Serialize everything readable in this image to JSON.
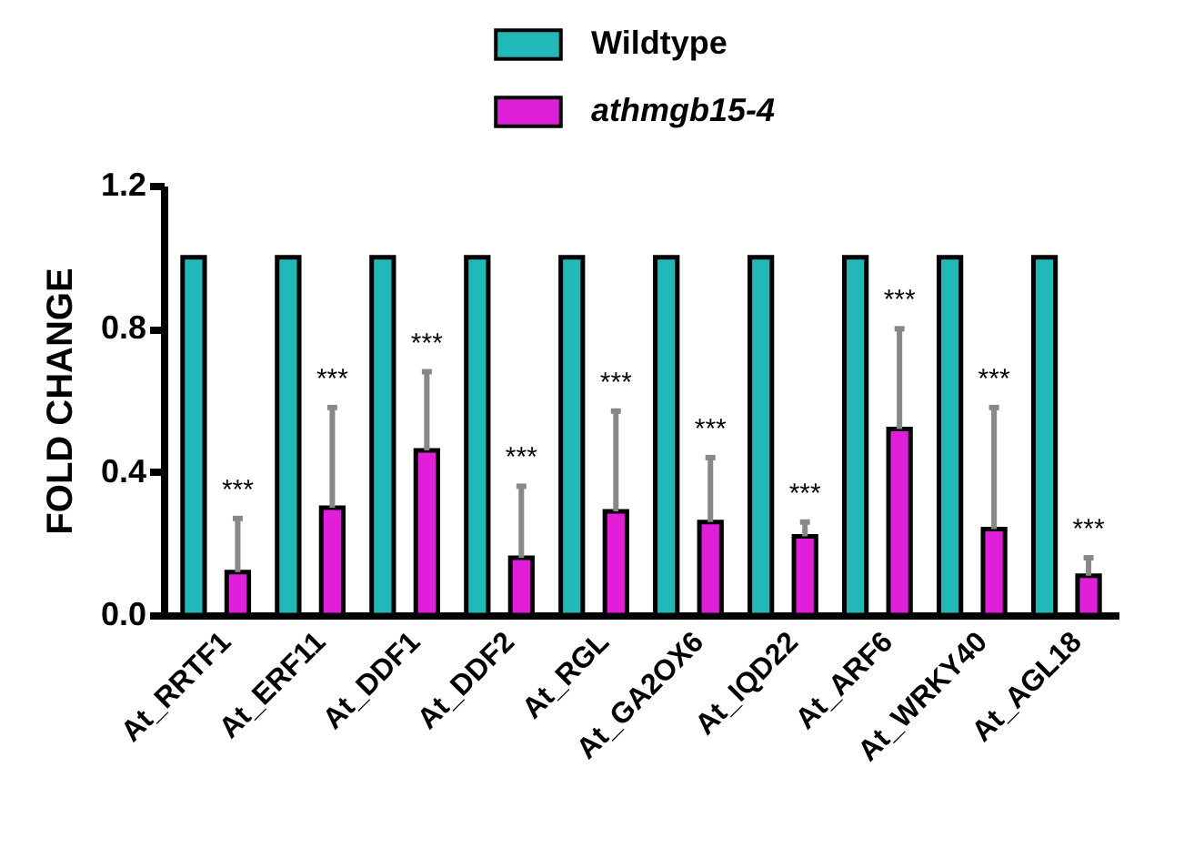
{
  "chart_data": {
    "type": "bar",
    "ylabel": "FOLD CHANGE",
    "categories": [
      "At_RRTF1",
      "At_ERF11",
      "At_DDF1",
      "At_DDF2",
      "At_RGL",
      "At_GA2OX6",
      "At_IQD22",
      "At_ARF6",
      "At_WRKY40",
      "At_AGL18"
    ],
    "series": [
      {
        "name": "Wildtype",
        "color": "#20b8b8",
        "values": [
          1,
          1,
          1,
          1,
          1,
          1,
          1,
          1,
          1,
          1
        ]
      },
      {
        "name": "athmgb15-4",
        "color": "#e020d8",
        "values": [
          0.12,
          0.3,
          0.46,
          0.16,
          0.29,
          0.26,
          0.22,
          0.52,
          0.24,
          0.11
        ],
        "errors": [
          [
            0.12,
            0.27
          ],
          [
            0.3,
            0.58
          ],
          [
            0.46,
            0.68
          ],
          [
            0.16,
            0.36
          ],
          [
            0.29,
            0.57
          ],
          [
            0.26,
            0.44
          ],
          [
            0.22,
            0.26
          ],
          [
            0.52,
            0.8
          ],
          [
            0.24,
            0.58
          ],
          [
            0.11,
            0.16
          ]
        ]
      }
    ],
    "ylim": [
      0,
      1.2
    ],
    "yticks": [
      {
        "value": 0,
        "label": "0.0"
      },
      {
        "value": 0.4,
        "label": "0.4"
      },
      {
        "value": 0.8,
        "label": "0.8"
      },
      {
        "value": 1.2,
        "label": "1.2"
      }
    ],
    "legend": "top",
    "annotations": [
      {
        "text": "***",
        "x": "At_RRTF1",
        "y": 0.27
      },
      {
        "text": "***",
        "x": "At_ERF11",
        "y": 0.58
      },
      {
        "text": "***",
        "x": "At_DDF1",
        "y": 0.68
      },
      {
        "text": "***",
        "x": "At_DDF2",
        "y": 0.36
      },
      {
        "text": "***",
        "x": "At_RGL",
        "y": 0.57
      },
      {
        "text": "***",
        "x": "At_GA2OX6",
        "y": 0.44
      },
      {
        "text": "***",
        "x": "At_IQD22",
        "y": 0.26
      },
      {
        "text": "***",
        "x": "At_ARF6",
        "y": 0.8
      },
      {
        "text": "***",
        "x": "At_WRKY40",
        "y": 0.58
      },
      {
        "text": "***",
        "x": "At_AGL18",
        "y": 0.16
      }
    ]
  }
}
